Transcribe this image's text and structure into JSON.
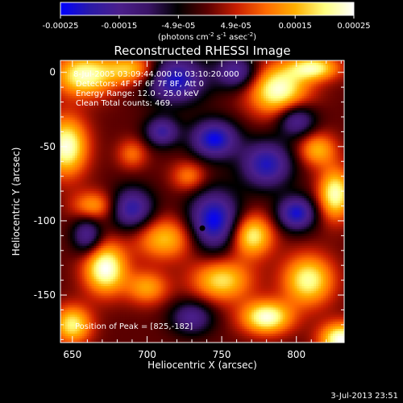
{
  "colorbar": {
    "tick_labels": [
      "-0.00025",
      "-0.00015",
      "-4.9e-05",
      "4.9e-05",
      "0.00015",
      "0.00025"
    ],
    "tick_values": [
      -0.00025,
      -0.00015,
      -4.9e-05,
      4.9e-05,
      0.00015,
      0.00025
    ],
    "range": [
      -0.00025,
      0.00025
    ],
    "unit_prefix": "(photons cm",
    "unit_sup1": "-2",
    "unit_mid": " s",
    "unit_sup2": "-1",
    "unit_mid2": " asec",
    "unit_sup3": "-2",
    "unit_suffix": ")"
  },
  "colors": {
    "background": "#000000",
    "foreground": "#ffffff",
    "peak_marker": "#000000",
    "colormap": [
      "#0000ff",
      "#2a1aa8",
      "#4b1f8c",
      "#3a1466",
      "#000000",
      "#5a0000",
      "#c81e00",
      "#ff6a00",
      "#ffb000",
      "#ffff80",
      "#ffffff"
    ]
  },
  "annotations": {
    "time_range": "8-Jul-2005 03:09:44.000 to 03:10:20.000",
    "detectors": "Detectors: 4F 5F 6F 7F 8F, Att 0",
    "energy": "Energy Range: 12.0 - 25.0 keV",
    "clean": "Clean     Total counts: 469.",
    "peak": "Position of Peak = [825,-182]"
  },
  "footer": {
    "date": "3-Jul-2013 23:51"
  },
  "chart_data": {
    "type": "heatmap",
    "title": "Reconstructed RHESSI Image",
    "xlabel": "Heliocentric X (arcsec)",
    "ylabel": "Heliocentric Y (arcsec)",
    "xlim": [
      642,
      832
    ],
    "ylim": [
      -182,
      8
    ],
    "xticks": [
      650,
      700,
      750,
      800
    ],
    "yticks": [
      0,
      -50,
      -100,
      -150
    ],
    "xtick_labels": [
      "650",
      "700",
      "750",
      "800"
    ],
    "ytick_labels": [
      "0",
      "-50",
      "-100",
      "-150"
    ],
    "peak_position": [
      825,
      -182
    ],
    "marked_point": [
      737,
      -105
    ],
    "blobs": [
      {
        "x": 658,
        "y": -2,
        "sx": 14,
        "sy": 10,
        "a": 0.9
      },
      {
        "x": 690,
        "y": 2,
        "sx": 12,
        "sy": 7,
        "a": 0.65
      },
      {
        "x": 788,
        "y": -12,
        "sx": 14,
        "sy": 12,
        "a": 0.95
      },
      {
        "x": 812,
        "y": 3,
        "sx": 12,
        "sy": 6,
        "a": 0.8
      },
      {
        "x": 646,
        "y": -50,
        "sx": 10,
        "sy": 14,
        "a": 0.95
      },
      {
        "x": 664,
        "y": -90,
        "sx": 10,
        "sy": 7,
        "a": 0.55
      },
      {
        "x": 672,
        "y": -132,
        "sx": 10,
        "sy": 12,
        "a": 1.0
      },
      {
        "x": 712,
        "y": -112,
        "sx": 14,
        "sy": 10,
        "a": 0.65
      },
      {
        "x": 700,
        "y": -145,
        "sx": 10,
        "sy": 8,
        "a": 0.55
      },
      {
        "x": 770,
        "y": -110,
        "sx": 10,
        "sy": 10,
        "a": 0.85
      },
      {
        "x": 750,
        "y": -140,
        "sx": 14,
        "sy": 10,
        "a": 0.75
      },
      {
        "x": 780,
        "y": -165,
        "sx": 12,
        "sy": 8,
        "a": 0.95
      },
      {
        "x": 808,
        "y": -140,
        "sx": 12,
        "sy": 12,
        "a": 0.85
      },
      {
        "x": 826,
        "y": -82,
        "sx": 8,
        "sy": 12,
        "a": 0.9
      },
      {
        "x": 814,
        "y": -52,
        "sx": 9,
        "sy": 8,
        "a": 0.6
      },
      {
        "x": 830,
        "y": -180,
        "sx": 10,
        "sy": 8,
        "a": 1.0
      },
      {
        "x": 650,
        "y": -170,
        "sx": 9,
        "sy": 9,
        "a": 0.8
      },
      {
        "x": 728,
        "y": -70,
        "sx": 8,
        "sy": 7,
        "a": 0.45
      },
      {
        "x": 690,
        "y": -55,
        "sx": 7,
        "sy": 7,
        "a": 0.4
      },
      {
        "x": 719,
        "y": -5,
        "sx": 14,
        "sy": 11,
        "a": -0.9
      },
      {
        "x": 745,
        "y": -45,
        "sx": 11,
        "sy": 9,
        "a": -0.95
      },
      {
        "x": 745,
        "y": -100,
        "sx": 12,
        "sy": 14,
        "a": -1.0
      },
      {
        "x": 710,
        "y": -40,
        "sx": 8,
        "sy": 7,
        "a": -0.7
      },
      {
        "x": 780,
        "y": -62,
        "sx": 12,
        "sy": 11,
        "a": -0.85
      },
      {
        "x": 800,
        "y": -95,
        "sx": 9,
        "sy": 8,
        "a": -0.9
      },
      {
        "x": 690,
        "y": -92,
        "sx": 10,
        "sy": 10,
        "a": -0.8
      },
      {
        "x": 660,
        "y": -110,
        "sx": 7,
        "sy": 9,
        "a": -0.65
      },
      {
        "x": 730,
        "y": -165,
        "sx": 10,
        "sy": 8,
        "a": -0.6
      },
      {
        "x": 800,
        "y": -32,
        "sx": 9,
        "sy": 8,
        "a": -0.7
      },
      {
        "x": 760,
        "y": 0,
        "sx": 10,
        "sy": 8,
        "a": -0.7
      }
    ]
  }
}
